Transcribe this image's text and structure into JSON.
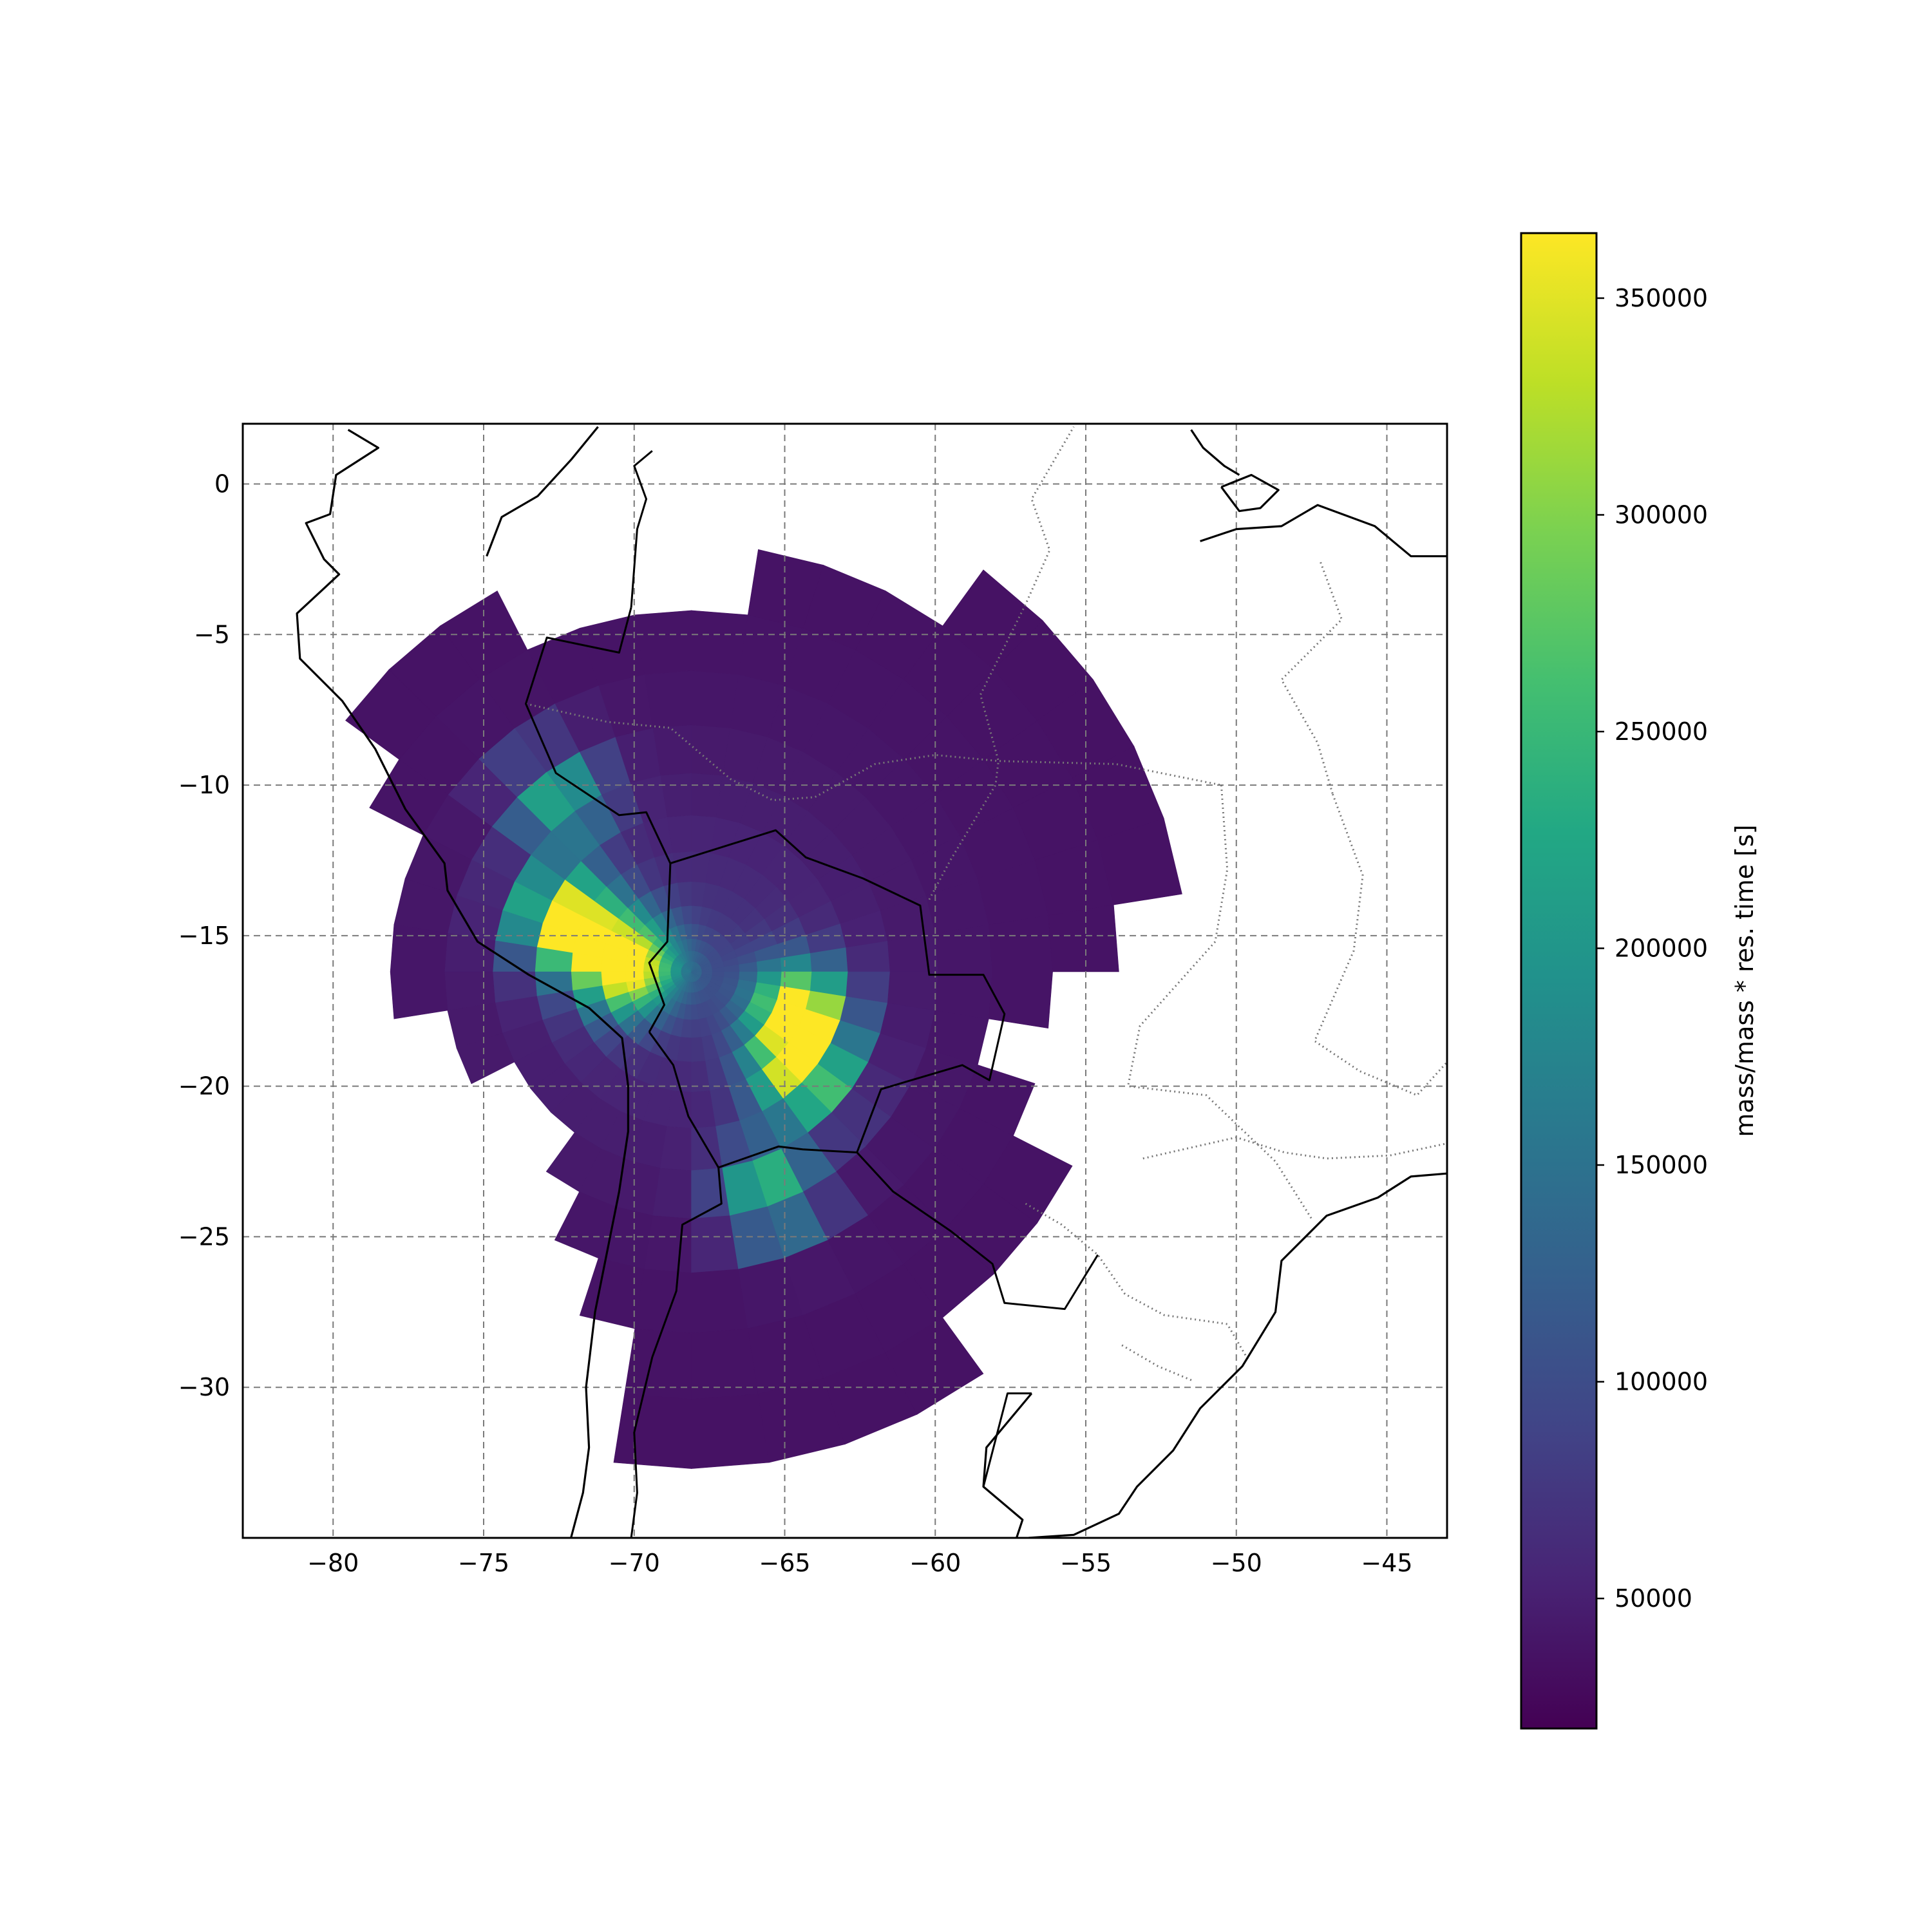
{
  "chart_data": {
    "type": "heatmap",
    "projection": "PlateCarree (longitude / latitude)",
    "grid": "polar sectors centred on receptor",
    "receptor": {
      "lon": -68.1,
      "lat": -16.2
    },
    "xlim": [
      -83,
      -43
    ],
    "ylim": [
      -35,
      2
    ],
    "x_ticks": [
      -80,
      -75,
      -70,
      -65,
      -60,
      -55,
      -50,
      -45
    ],
    "x_tick_labels": [
      "−80",
      "−75",
      "−70",
      "−65",
      "−60",
      "−55",
      "−50",
      "−45"
    ],
    "y_ticks": [
      0,
      -5,
      -10,
      -15,
      -20,
      -25,
      -30
    ],
    "y_tick_labels": [
      "0",
      "−5",
      "−10",
      "−15",
      "−20",
      "−25",
      "−30"
    ],
    "gridlines": true,
    "gridline_style": "dashed",
    "colormap": "viridis",
    "colorbar": {
      "label": "mass/mass * res. time [s]",
      "range": [
        20000,
        365000
      ],
      "ticks": [
        50000,
        100000,
        150000,
        200000,
        250000,
        300000,
        350000
      ],
      "tick_labels": [
        "50000",
        "100000",
        "150000",
        "200000",
        "250000",
        "300000",
        "350000"
      ]
    },
    "hotspots": [
      {
        "lon": -72.3,
        "lat": -14.5,
        "value": 365000
      },
      {
        "lon": -70.3,
        "lat": -16.0,
        "value": 360000
      },
      {
        "lon": -64.5,
        "lat": -17.5,
        "value": 330000
      },
      {
        "lon": -64.5,
        "lat": -19.5,
        "value": 310000
      },
      {
        "lon": -65.5,
        "lat": -23.5,
        "value": 230000
      },
      {
        "lon": -72.5,
        "lat": -10.5,
        "value": 200000
      }
    ]
  },
  "colors": {
    "axes_frame": "#000000",
    "gridline": "#7a7a7a",
    "coastline": "#000000",
    "borders": "#777777"
  }
}
